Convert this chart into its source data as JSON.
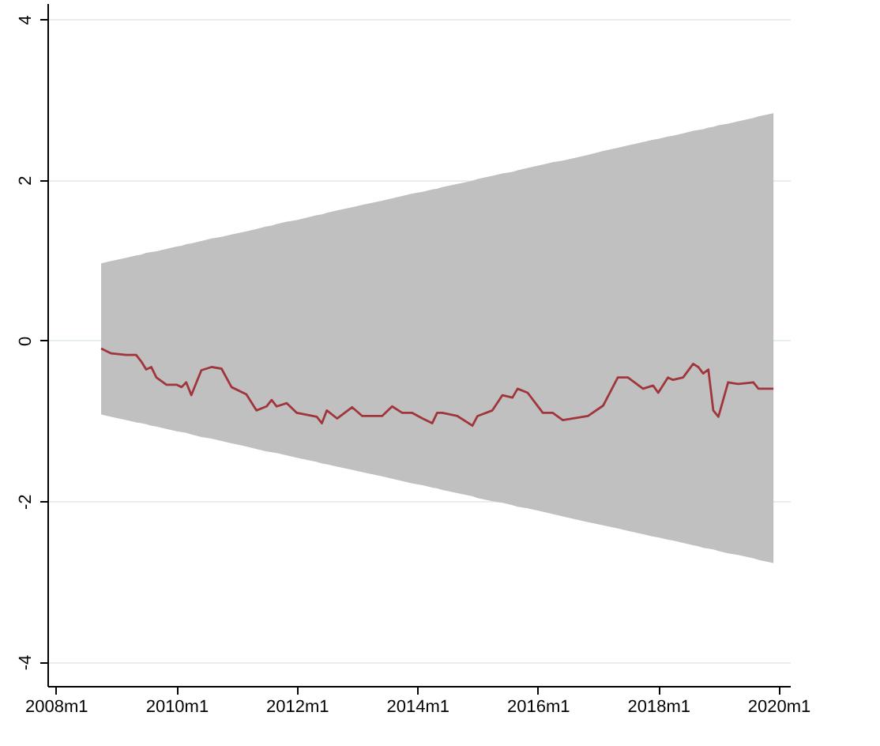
{
  "chart_data": {
    "type": "line",
    "xlim": [
      "2007-11-10",
      "2020-03-10"
    ],
    "ylim": [
      -4.3,
      4.2
    ],
    "xticks": [
      {
        "value": "2008-01",
        "label": "2008m1"
      },
      {
        "value": "2010-01",
        "label": "2010m1"
      },
      {
        "value": "2012-01",
        "label": "2012m1"
      },
      {
        "value": "2014-01",
        "label": "2014m1"
      },
      {
        "value": "2016-01",
        "label": "2016m1"
      },
      {
        "value": "2018-01",
        "label": "2018m1"
      },
      {
        "value": "2020-01",
        "label": "2020m1"
      }
    ],
    "yticks": [
      -4,
      -2,
      0,
      2,
      4
    ],
    "grid": "y",
    "series": [
      {
        "color": "#a0363b",
        "x": [
          "2008-10",
          "2008-12",
          "2009-03",
          "2009-05",
          "2009-06",
          "2009-07",
          "2009-08",
          "2009-09",
          "2009-11",
          "2010-01",
          "2010-02",
          "2010-03",
          "2010-04",
          "2010-06",
          "2010-08",
          "2010-10",
          "2010-12",
          "2011-03",
          "2011-05",
          "2011-07",
          "2011-08",
          "2011-09",
          "2011-11",
          "2012-01",
          "2012-05",
          "2012-06",
          "2012-07",
          "2012-09",
          "2012-12",
          "2013-02",
          "2013-06",
          "2013-08",
          "2013-10",
          "2013-12",
          "2014-02",
          "2014-04",
          "2014-05",
          "2014-06",
          "2014-09",
          "2014-12",
          "2015-01",
          "2015-04",
          "2015-06",
          "2015-08",
          "2015-09",
          "2015-11",
          "2016-02",
          "2016-04",
          "2016-06",
          "2016-11",
          "2017-02",
          "2017-05",
          "2017-07",
          "2017-10",
          "2017-12",
          "2018-01",
          "2018-03",
          "2018-04",
          "2018-06",
          "2018-08",
          "2018-09",
          "2018-10",
          "2018-11",
          "2018-12",
          "2019-01",
          "2019-03",
          "2019-05",
          "2019-08",
          "2019-09",
          "2019-12"
        ],
        "values": [
          -0.1,
          -0.16,
          -0.18,
          -0.18,
          -0.26,
          -0.36,
          -0.33,
          -0.46,
          -0.55,
          -0.55,
          -0.58,
          -0.52,
          -0.68,
          -0.37,
          -0.33,
          -0.35,
          -0.58,
          -0.67,
          -0.87,
          -0.82,
          -0.74,
          -0.82,
          -0.78,
          -0.9,
          -0.95,
          -1.03,
          -0.87,
          -0.97,
          -0.83,
          -0.94,
          -0.94,
          -0.82,
          -0.9,
          -0.9,
          -0.97,
          -1.03,
          -0.9,
          -0.9,
          -0.94,
          -1.06,
          -0.94,
          -0.87,
          -0.68,
          -0.71,
          -0.6,
          -0.65,
          -0.9,
          -0.9,
          -0.99,
          -0.94,
          -0.81,
          -0.46,
          -0.46,
          -0.6,
          -0.56,
          -0.65,
          -0.46,
          -0.49,
          -0.46,
          -0.29,
          -0.33,
          -0.41,
          -0.36,
          -0.87,
          -0.95,
          -0.52,
          -0.54,
          -0.52,
          -0.6,
          -0.6
        ],
        "upper": [
          0.96,
          0.99,
          1.03,
          1.06,
          1.07,
          1.09,
          1.1,
          1.11,
          1.14,
          1.17,
          1.18,
          1.2,
          1.21,
          1.24,
          1.27,
          1.29,
          1.32,
          1.36,
          1.39,
          1.42,
          1.43,
          1.45,
          1.48,
          1.5,
          1.56,
          1.57,
          1.59,
          1.62,
          1.66,
          1.69,
          1.74,
          1.77,
          1.8,
          1.83,
          1.85,
          1.88,
          1.89,
          1.91,
          1.95,
          1.99,
          2.01,
          2.05,
          2.08,
          2.1,
          2.12,
          2.15,
          2.19,
          2.22,
          2.24,
          2.31,
          2.36,
          2.4,
          2.43,
          2.47,
          2.5,
          2.51,
          2.54,
          2.55,
          2.58,
          2.61,
          2.62,
          2.63,
          2.65,
          2.66,
          2.68,
          2.7,
          2.73,
          2.77,
          2.79,
          2.83
        ],
        "lower": [
          -0.92,
          -0.95,
          -0.99,
          -1.02,
          -1.03,
          -1.04,
          -1.06,
          -1.07,
          -1.1,
          -1.13,
          -1.14,
          -1.15,
          -1.17,
          -1.2,
          -1.22,
          -1.25,
          -1.28,
          -1.32,
          -1.35,
          -1.38,
          -1.39,
          -1.4,
          -1.43,
          -1.46,
          -1.51,
          -1.53,
          -1.54,
          -1.57,
          -1.61,
          -1.64,
          -1.69,
          -1.72,
          -1.75,
          -1.78,
          -1.8,
          -1.83,
          -1.84,
          -1.86,
          -1.9,
          -1.94,
          -1.96,
          -2.0,
          -2.02,
          -2.05,
          -2.07,
          -2.09,
          -2.13,
          -2.16,
          -2.19,
          -2.26,
          -2.3,
          -2.34,
          -2.37,
          -2.41,
          -2.44,
          -2.45,
          -2.48,
          -2.49,
          -2.52,
          -2.55,
          -2.56,
          -2.58,
          -2.59,
          -2.6,
          -2.62,
          -2.65,
          -2.67,
          -2.71,
          -2.73,
          -2.77
        ]
      }
    ]
  }
}
